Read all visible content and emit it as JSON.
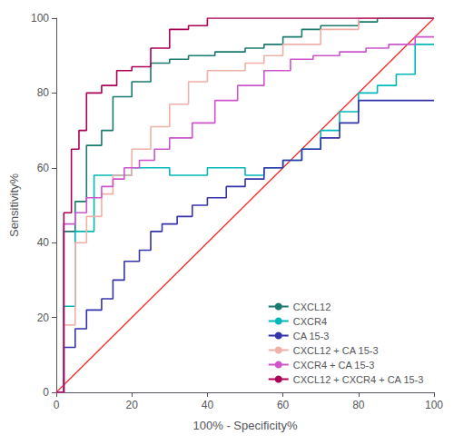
{
  "chart_data": {
    "type": "line",
    "title": "",
    "xlabel": "100% - Specificity%",
    "ylabel": "Sensitivity%",
    "xlim": [
      0,
      100
    ],
    "ylim": [
      0,
      100
    ],
    "xticks": [
      0,
      20,
      40,
      60,
      80,
      100
    ],
    "yticks": [
      0,
      20,
      40,
      60,
      80,
      100
    ],
    "grid": false,
    "legend": "lower right",
    "reference_line": {
      "x": [
        0,
        100
      ],
      "y": [
        0,
        100
      ],
      "color": "#FF2222"
    },
    "series": [
      {
        "name": "CXCL12",
        "color": "#1A7A6E",
        "x": [
          0,
          2,
          2,
          5,
          5,
          8,
          8,
          12,
          12,
          15,
          15,
          20,
          20,
          25,
          25,
          30,
          30,
          35,
          35,
          42,
          42,
          50,
          50,
          55,
          55,
          60,
          60,
          65,
          65,
          70,
          70,
          80,
          80,
          85,
          85,
          90,
          90,
          100
        ],
        "values": [
          0,
          0,
          43,
          43,
          51,
          51,
          66,
          66,
          70,
          70,
          79,
          79,
          83,
          83,
          88,
          88,
          89,
          89,
          90,
          90,
          91,
          91,
          92,
          92,
          93,
          93,
          95,
          95,
          97,
          97,
          98,
          98,
          99,
          99,
          100,
          100,
          100,
          100
        ]
      },
      {
        "name": "CXCR4",
        "color": "#00B8B8",
        "x": [
          0,
          2,
          2,
          5,
          5,
          10,
          10,
          20,
          20,
          30,
          30,
          40,
          40,
          50,
          50,
          55,
          55,
          60,
          60,
          65,
          65,
          70,
          70,
          75,
          75,
          80,
          80,
          85,
          85,
          90,
          90,
          95,
          95,
          100
        ],
        "values": [
          0,
          0,
          23,
          23,
          43,
          43,
          58,
          58,
          60,
          60,
          58,
          58,
          60,
          60,
          58,
          58,
          60,
          60,
          62,
          62,
          65,
          65,
          70,
          70,
          75,
          75,
          80,
          80,
          82,
          82,
          85,
          85,
          93,
          93
        ]
      },
      {
        "name": "CA 15-3",
        "color": "#3333AA",
        "x": [
          0,
          2,
          2,
          5,
          5,
          8,
          8,
          12,
          12,
          15,
          15,
          18,
          18,
          22,
          22,
          25,
          25,
          28,
          28,
          32,
          32,
          36,
          36,
          40,
          40,
          45,
          45,
          50,
          50,
          55,
          55,
          60,
          60,
          65,
          65,
          70,
          70,
          75,
          75,
          80,
          80,
          100
        ],
        "values": [
          0,
          0,
          12,
          12,
          17,
          17,
          22,
          22,
          25,
          25,
          30,
          30,
          35,
          35,
          38,
          38,
          43,
          43,
          45,
          45,
          47,
          47,
          50,
          50,
          52,
          52,
          55,
          55,
          57,
          57,
          60,
          60,
          62,
          62,
          65,
          65,
          68,
          68,
          72,
          72,
          78,
          78
        ]
      },
      {
        "name": "CXCL12 + CA 15-3",
        "color": "#F0B0A8",
        "x": [
          0,
          2,
          2,
          5,
          5,
          8,
          8,
          12,
          12,
          15,
          15,
          20,
          20,
          25,
          25,
          30,
          30,
          35,
          35,
          40,
          40,
          50,
          50,
          55,
          55,
          60,
          60,
          70,
          70,
          80,
          80,
          85,
          85,
          90,
          90,
          100
        ],
        "values": [
          0,
          0,
          18,
          18,
          40,
          40,
          47,
          47,
          53,
          53,
          58,
          58,
          65,
          65,
          71,
          71,
          77,
          77,
          83,
          83,
          86,
          86,
          88,
          88,
          90,
          90,
          93,
          93,
          97,
          97,
          100,
          100,
          100,
          100,
          100,
          100
        ]
      },
      {
        "name": "CXCR4 + CA 15-3",
        "color": "#CC55CC",
        "x": [
          0,
          2,
          2,
          5,
          5,
          8,
          8,
          12,
          12,
          15,
          15,
          18,
          18,
          22,
          22,
          26,
          26,
          30,
          30,
          36,
          36,
          42,
          42,
          48,
          48,
          55,
          55,
          62,
          62,
          68,
          68,
          75,
          75,
          82,
          82,
          88,
          88,
          95,
          95,
          100
        ],
        "values": [
          0,
          0,
          45,
          45,
          48,
          48,
          52,
          52,
          55,
          55,
          57,
          57,
          60,
          60,
          62,
          62,
          65,
          65,
          68,
          68,
          72,
          72,
          78,
          78,
          82,
          82,
          86,
          86,
          89,
          89,
          90,
          90,
          91,
          91,
          92,
          92,
          93,
          93,
          95,
          95
        ]
      },
      {
        "name": "CXCL12 + CXCR4 + CA 15-3",
        "color": "#AA0055",
        "x": [
          0,
          2,
          2,
          4,
          4,
          6,
          6,
          8,
          8,
          12,
          12,
          16,
          16,
          20,
          20,
          25,
          25,
          30,
          30,
          35,
          35,
          40,
          40,
          50,
          50,
          55,
          55,
          60,
          60,
          100
        ],
        "values": [
          0,
          0,
          48,
          48,
          65,
          65,
          70,
          70,
          80,
          80,
          82,
          82,
          86,
          86,
          87,
          87,
          92,
          92,
          97,
          97,
          98,
          98,
          100,
          100,
          100,
          100,
          100,
          100,
          100,
          100
        ]
      }
    ]
  }
}
